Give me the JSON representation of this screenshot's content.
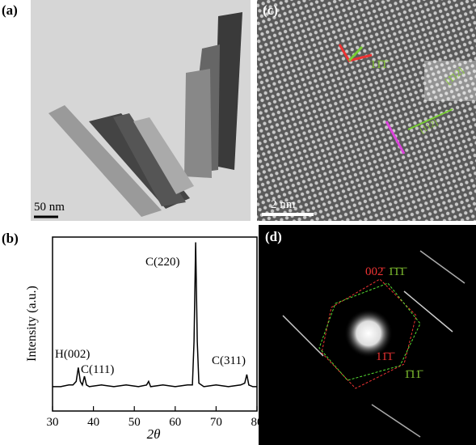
{
  "panels": {
    "a": {
      "label": "(a)",
      "scale_bar": "50 nm"
    },
    "b": {
      "label": "(b)"
    },
    "c": {
      "label": "(c)",
      "scale_bar": "2 nm",
      "indices": [
        "11̄1̄",
        "[1̄12]",
        "[112]"
      ]
    },
    "d": {
      "label": "(d)",
      "indices": [
        "002̄",
        "1̄1̄1̄",
        "11̄1̄",
        "1̄11̄"
      ]
    }
  },
  "chart_data": {
    "type": "line",
    "x_label": "2θ",
    "y_label": "Intensity (a.u.)",
    "x": [
      30,
      32,
      34,
      35,
      35.8,
      36.3,
      36.8,
      37.3,
      37.8,
      38.3,
      39,
      42,
      45,
      48,
      51,
      53,
      53.5,
      54,
      57,
      60,
      63,
      64.2,
      64.6,
      65,
      65.4,
      65.8,
      67,
      70,
      73,
      76,
      77,
      77.5,
      78,
      79,
      80
    ],
    "values": [
      14,
      14,
      15,
      15,
      17,
      25,
      17,
      15,
      20,
      15,
      14,
      15,
      14,
      15,
      14,
      15,
      17,
      14,
      15,
      14,
      15,
      15,
      40,
      97,
      40,
      16,
      14,
      15,
      14,
      15,
      16,
      21,
      15,
      14,
      14
    ],
    "color": "#000000",
    "xlim": [
      30,
      80
    ],
    "xticks": [
      30,
      40,
      50,
      60,
      70,
      80
    ],
    "ylim": [
      0,
      100
    ],
    "annotations": [
      "H(002)",
      "C(111)",
      "C(220)",
      "C(311)"
    ]
  }
}
